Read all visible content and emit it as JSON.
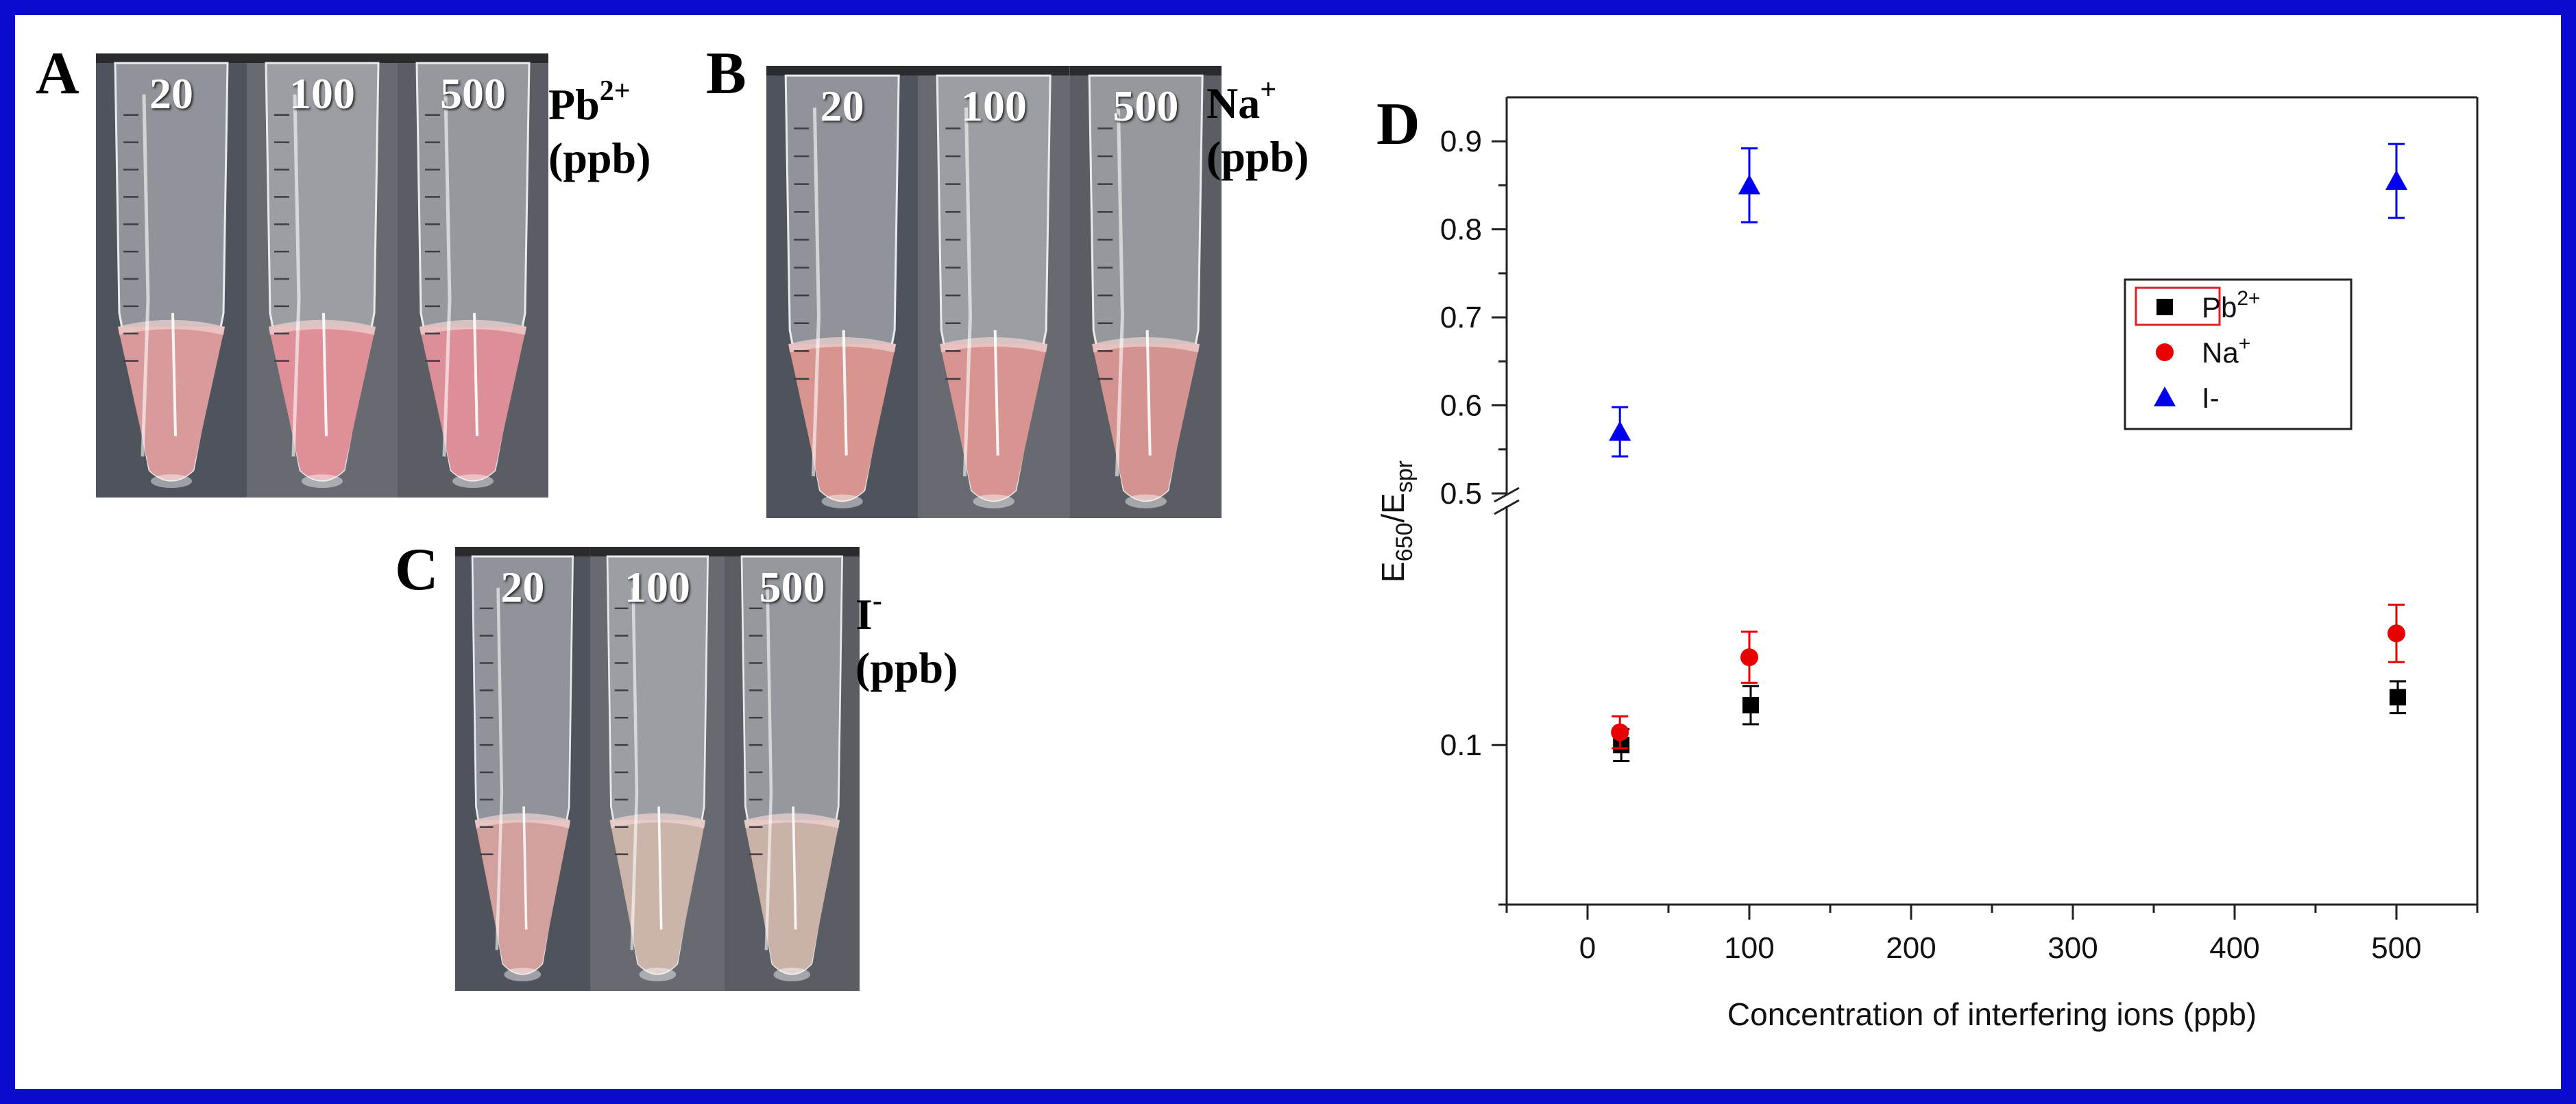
{
  "panels": {
    "A": {
      "letter": "A",
      "ion_label": "Pb",
      "ion_sup": "2+",
      "unit": "(ppb)",
      "tubes": [
        "20",
        "100",
        "500"
      ],
      "liquid_colors": [
        "#d99a9c",
        "#de8f98",
        "#dc8f98"
      ]
    },
    "B": {
      "letter": "B",
      "ion_label": "Na",
      "ion_sup": "+",
      "unit": "(ppb)",
      "tubes": [
        "20",
        "100",
        "500"
      ],
      "liquid_colors": [
        "#d8948f",
        "#d89491",
        "#d39390"
      ]
    },
    "C": {
      "letter": "C",
      "ion_label": "I",
      "ion_sup": "-",
      "unit": "(ppb)",
      "tubes": [
        "20",
        "100",
        "500"
      ],
      "liquid_colors": [
        "#d3a19d",
        "#cbb5ab",
        "#cab2a8"
      ]
    }
  },
  "chart_letter": "D",
  "chart_data": {
    "type": "scatter",
    "xlabel": "Concentration of interfering ions (ppb)",
    "ylabel": {
      "main": "E",
      "sub1": "650",
      "slash": "/E",
      "sub2": "spr"
    },
    "xlim": [
      -50,
      550
    ],
    "xticks": [
      "0",
      "100",
      "200",
      "300",
      "400",
      "500"
    ],
    "xtick_values": [
      0,
      100,
      200,
      300,
      400,
      500
    ],
    "y_upper": {
      "range": [
        0.5,
        0.95
      ],
      "ticks": [
        "0.5",
        "0.6",
        "0.7",
        "0.8",
        "0.9"
      ],
      "tick_values": [
        0.5,
        0.6,
        0.7,
        0.8,
        0.9
      ]
    },
    "y_lower": {
      "range": [
        0.0,
        0.25
      ],
      "ticks": [
        "0.1"
      ],
      "tick_values": [
        0.1
      ]
    },
    "series": [
      {
        "name": "Pb",
        "sup": "2+",
        "marker": "square",
        "color": "#000000",
        "errcolor": "#000000",
        "x": [
          20,
          100,
          500
        ],
        "y": [
          0.1,
          0.125,
          0.13
        ],
        "err": [
          0.01,
          0.012,
          0.01
        ]
      },
      {
        "name": "Na",
        "sup": "+",
        "marker": "circle",
        "color": "#e60000",
        "errcolor": "#e60000",
        "x": [
          20,
          100,
          500
        ],
        "y": [
          0.108,
          0.155,
          0.17
        ],
        "err": [
          0.01,
          0.016,
          0.018
        ]
      },
      {
        "name": "I-",
        "sup": "",
        "marker": "triangle",
        "color": "#0000ee",
        "errcolor": "#0000ee",
        "x": [
          20,
          100,
          500
        ],
        "y": [
          0.57,
          0.85,
          0.855
        ],
        "err": [
          0.028,
          0.042,
          0.042
        ]
      }
    ],
    "legend": {
      "position": "top-right"
    }
  }
}
